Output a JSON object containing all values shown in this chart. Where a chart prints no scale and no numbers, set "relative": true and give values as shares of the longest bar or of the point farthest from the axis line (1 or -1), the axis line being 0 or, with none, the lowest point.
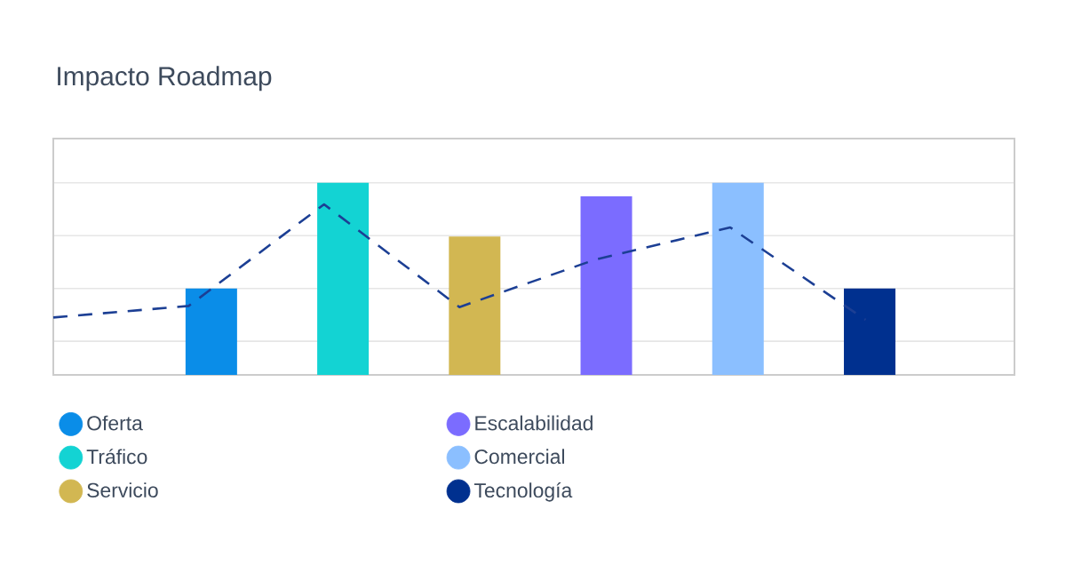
{
  "chart_data": [
    {
      "type": "bar",
      "title": "Impacto Roadmap",
      "relative": true,
      "grid": "y",
      "legend": "bottom",
      "stacked": true,
      "categories": [
        null,
        null,
        null,
        null,
        null,
        null
      ],
      "series": [
        {
          "name": "Oferta",
          "color": "#0a8de8",
          "values": [
            0.45,
            null,
            null,
            null,
            null,
            null
          ]
        },
        {
          "name": "Tráfico",
          "color": "#13d3d3",
          "values": [
            null,
            1,
            null,
            null,
            null,
            null
          ]
        },
        {
          "name": "Servicio",
          "color": "#d2b752",
          "values": [
            null,
            null,
            0.72,
            null,
            null,
            null
          ]
        },
        {
          "name": "Escalabilidad",
          "color": "#7b6cff",
          "values": [
            null,
            null,
            null,
            0.93,
            null,
            null
          ]
        },
        {
          "name": "Comercial",
          "color": "#8bbfff",
          "values": [
            null,
            null,
            null,
            null,
            1,
            null
          ]
        },
        {
          "name": "Tecnología",
          "color": "#00308f",
          "values": [
            null,
            null,
            null,
            null,
            null,
            0.45
          ]
        }
      ]
    },
    {
      "type": "line",
      "relative": true,
      "line_style": "dashed",
      "categories": [
        null,
        null,
        null,
        null,
        null,
        null,
        null
      ],
      "series": [
        {
          "color": "#1c3f94",
          "values": [
            0.02,
            0.12,
            1,
            0.11,
            0.52,
            0.8,
            0
          ]
        }
      ]
    }
  ]
}
